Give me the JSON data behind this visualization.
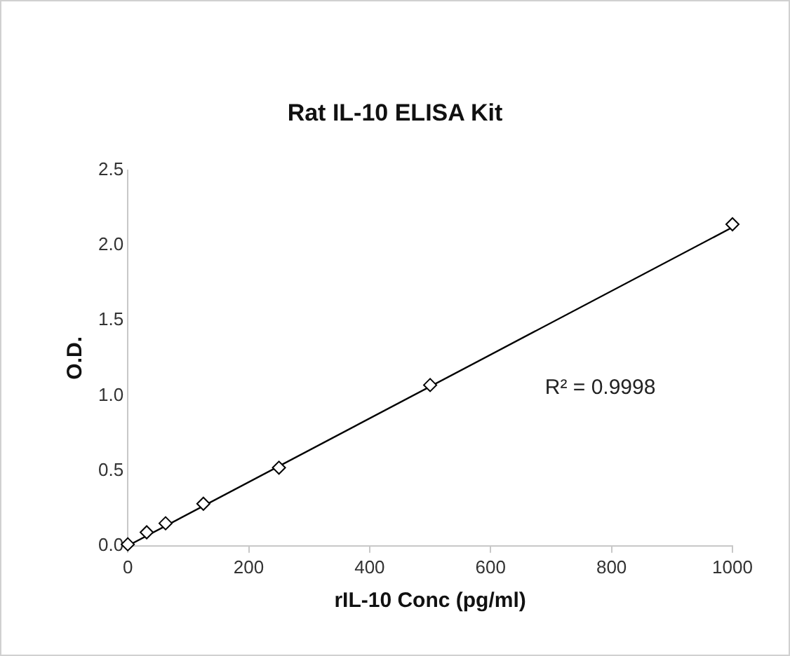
{
  "chart_data": {
    "type": "scatter",
    "title": "Rat IL-10 ELISA Kit",
    "xlabel": "rIL-10 Conc (pg/ml)",
    "ylabel": "O.D.",
    "annotations": [
      "R² = 0.9998"
    ],
    "series": [
      {
        "type": "scatter",
        "color": "#000000",
        "marker": "diamond",
        "x": [
          0,
          31.25,
          62.5,
          125,
          250,
          500,
          1000
        ],
        "values": [
          0.01,
          0.09,
          0.15,
          0.28,
          0.52,
          1.07,
          2.14
        ]
      },
      {
        "type": "line",
        "color": "#000000",
        "marker": "none",
        "line_style": "solid",
        "x": [
          0,
          1000
        ],
        "values": [
          0.0,
          2.12
        ]
      }
    ],
    "xlim": [
      0,
      1000
    ],
    "xticks": [
      0,
      200,
      400,
      600,
      800,
      1000
    ],
    "ylim": [
      0,
      2.5
    ],
    "yticks": [
      {
        "value": 0,
        "label": "0.0"
      },
      {
        "value": 0.5,
        "label": "0.5"
      },
      {
        "value": 1,
        "label": "1.0"
      },
      {
        "value": 1.5,
        "label": "1.5"
      },
      {
        "value": 2,
        "label": "2.0"
      },
      {
        "value": 2.5,
        "label": "2.5"
      }
    ],
    "grid": false,
    "legend": false
  }
}
